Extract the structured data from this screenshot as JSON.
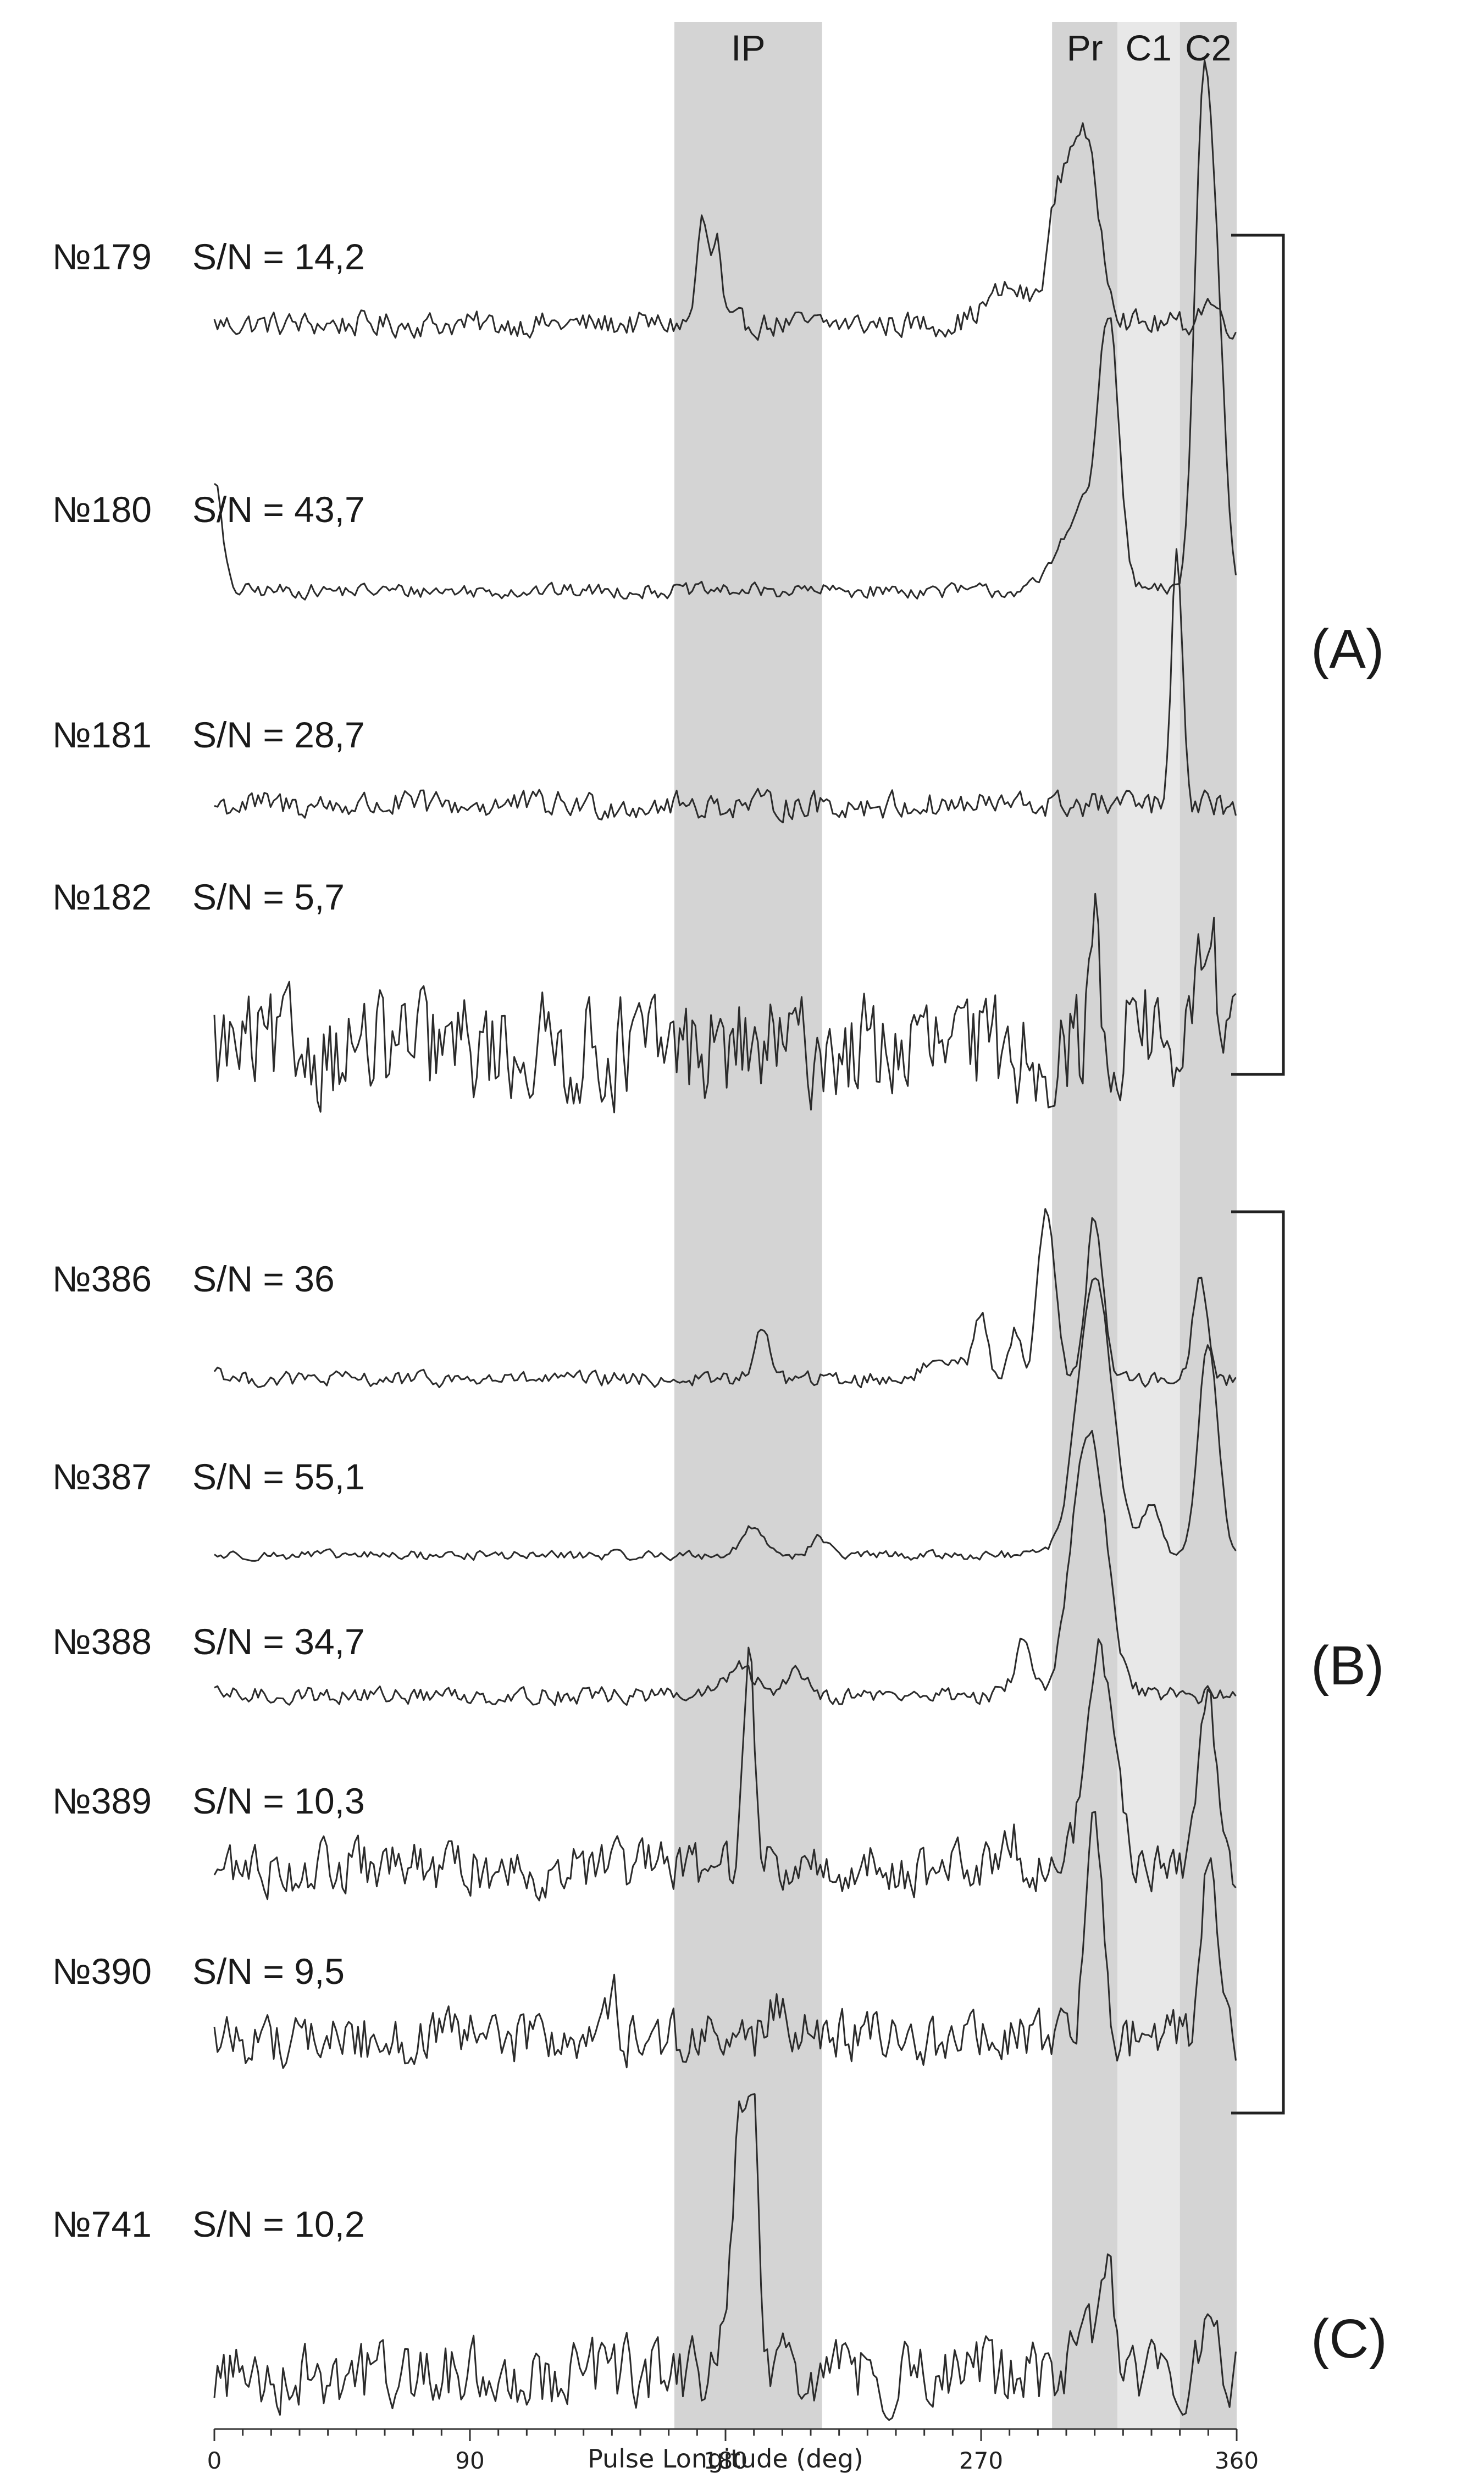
{
  "chart_data": {
    "type": "line",
    "xlabel": "Pulse Longitude (deg)",
    "xlim": [
      0,
      360
    ],
    "x_ticks": [
      0,
      90,
      180,
      270,
      360
    ],
    "x_tick_labels": [
      "0",
      "90",
      "180",
      "270",
      "360"
    ],
    "grid": false,
    "bands": [
      {
        "label": "IP",
        "x_start": 162,
        "x_end": 214,
        "color": "#d4d4d4"
      },
      {
        "label": "Pr",
        "x_start": 295,
        "x_end": 318,
        "color": "#d4d4d4"
      },
      {
        "label": "C1",
        "x_start": 318,
        "x_end": 340,
        "color": "#e8e8e8"
      },
      {
        "label": "C2",
        "x_start": 340,
        "x_end": 360,
        "color": "#d4d4d4"
      }
    ],
    "groups": [
      {
        "label": "(A)",
        "members": [
          "№179",
          "№180",
          "№181",
          "№182"
        ]
      },
      {
        "label": "(B)",
        "members": [
          "№386",
          "№387",
          "№388",
          "№389",
          "№390"
        ]
      },
      {
        "label": "(C)",
        "members": [
          "№741"
        ]
      }
    ],
    "series": [
      {
        "name": "№179",
        "sn_text": "S/N = 14,2",
        "noise": 0.05,
        "peaks": [
          [
            172,
            0.45,
            2
          ],
          [
            177,
            0.35,
            1.5
          ],
          [
            305,
            0.85,
            6
          ],
          [
            296,
            0.25,
            3
          ],
          [
            280,
            0.15,
            8
          ],
          [
            350,
            0.1,
            3
          ]
        ]
      },
      {
        "name": "№180",
        "sn_text": "S/N = 43,7",
        "noise": 0.015,
        "peaks": [
          [
            315,
            0.55,
            3.5
          ],
          [
            305,
            0.18,
            7
          ],
          [
            348,
            1.0,
            3
          ],
          [
            353,
            0.55,
            3
          ],
          [
            0,
            0.25,
            2.5
          ]
        ]
      },
      {
        "name": "№181",
        "sn_text": "S/N = 28,7",
        "noise": 0.05,
        "peaks": [
          [
            339,
            1.0,
            1.8
          ]
        ]
      },
      {
        "name": "№182",
        "sn_text": "S/N = 5,7",
        "noise": 0.22,
        "peaks": [
          [
            310,
            0.5,
            2
          ],
          [
            350,
            0.55,
            3
          ],
          [
            325,
            0.2,
            3
          ]
        ]
      },
      {
        "name": "№386",
        "sn_text": "S/N = 36",
        "noise": 0.03,
        "peaks": [
          [
            293,
            0.75,
            3
          ],
          [
            310,
            0.7,
            3
          ],
          [
            347,
            0.45,
            2.5
          ],
          [
            270,
            0.25,
            2
          ],
          [
            282,
            0.2,
            2
          ],
          [
            193,
            0.2,
            3
          ],
          [
            260,
            0.1,
            8
          ],
          [
            0,
            0.05,
            3
          ]
        ]
      },
      {
        "name": "№387",
        "sn_text": "S/N = 55,1",
        "noise": 0.015,
        "peaks": [
          [
            310,
            1.0,
            6
          ],
          [
            350,
            0.75,
            3.5
          ],
          [
            330,
            0.18,
            3
          ],
          [
            190,
            0.1,
            4
          ],
          [
            213,
            0.06,
            3
          ]
        ]
      },
      {
        "name": "№388",
        "sn_text": "S/N = 34,7",
        "noise": 0.03,
        "peaks": [
          [
            308,
            1.0,
            6
          ],
          [
            285,
            0.2,
            3
          ],
          [
            185,
            0.1,
            5
          ],
          [
            205,
            0.1,
            4
          ]
        ]
      },
      {
        "name": "№389",
        "sn_text": "S/N = 10,3",
        "noise": 0.1,
        "peaks": [
          [
            188,
            0.9,
            2.2
          ],
          [
            312,
            0.9,
            5
          ],
          [
            350,
            0.75,
            3
          ],
          [
            280,
            0.18,
            3
          ]
        ]
      },
      {
        "name": "№390",
        "sn_text": "S/N = 9,5",
        "noise": 0.1,
        "peaks": [
          [
            310,
            0.85,
            3
          ],
          [
            350,
            0.8,
            2.5
          ],
          [
            140,
            0.25,
            1.2
          ],
          [
            200,
            0.18,
            3
          ]
        ]
      },
      {
        "name": "№741",
        "sn_text": "S/N = 10,2",
        "noise": 0.13,
        "peaks": [
          [
            185,
            0.95,
            3
          ],
          [
            190,
            0.85,
            2
          ],
          [
            315,
            0.45,
            2.5
          ],
          [
            305,
            0.2,
            3
          ],
          [
            350,
            0.2,
            3
          ]
        ]
      }
    ]
  }
}
